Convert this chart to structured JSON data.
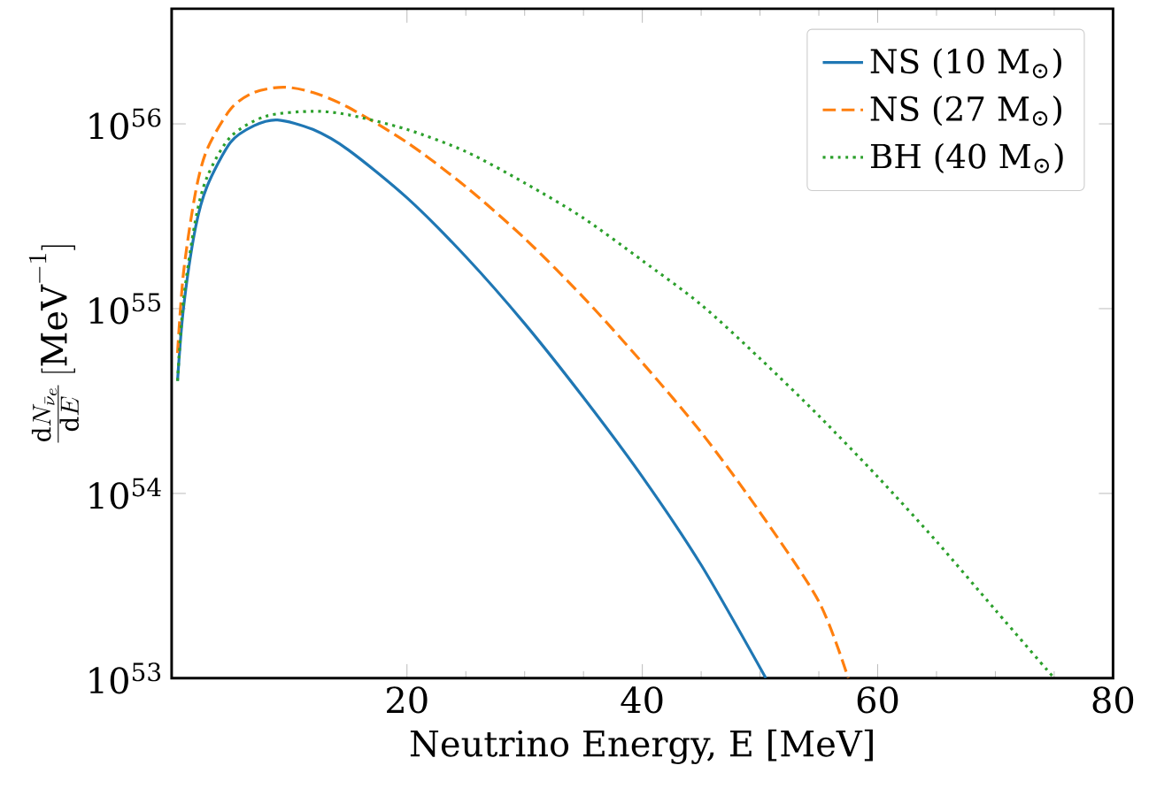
{
  "chart_data": {
    "type": "line",
    "xlabel": "Neutrino Energy, E [MeV]",
    "ylabel": "\\frac{\\mathrm{d}N_{\\bar{\\nu}_e}}{\\mathrm{d}E}\\,[\\mathrm{MeV}^{-1}]",
    "log": "y",
    "xlim": [
      0,
      80
    ],
    "ylim": [
      1e+53,
      4.2e+56
    ],
    "xticks": [
      20,
      40,
      60,
      80
    ],
    "yticks": [
      {
        "value": 1e+53,
        "label": "10$^{53}$"
      },
      {
        "value": 1e+54,
        "label": "10$^{54}$"
      },
      {
        "value": 1e+55,
        "label": "10$^{55}$"
      },
      {
        "value": 1e+56,
        "label": "10$^{56}$"
      }
    ],
    "legend": "top right",
    "series": [
      {
        "name": "NS (10 M$_{⊙}$)",
        "color": "#1f77b4",
        "line_style": "solid",
        "x": [
          0.5,
          1,
          2,
          3,
          5,
          7,
          9,
          12,
          15,
          20,
          25,
          30,
          35,
          40,
          45,
          50.5
        ],
        "values": [
          4.07e+54,
          1e+55,
          2.69e+55,
          4.57e+55,
          7.94e+55,
          9.77e+55,
          1.05e+56,
          9.33e+55,
          7.24e+55,
          3.98e+55,
          1.91e+55,
          8.3e+54,
          3.3e+54,
          1.23e+54,
          4.1e+53,
          1e+53
        ]
      },
      {
        "name": "NS (27 M$_{⊙}$)",
        "color": "#ff7f0e",
        "line_style": "dashed",
        "x": [
          0.5,
          1,
          2,
          3,
          5,
          7,
          9.5,
          12,
          15,
          20,
          25,
          30,
          35,
          40,
          45,
          50,
          55,
          57.5
        ],
        "values": [
          5.75e+54,
          1.55e+55,
          4.17e+55,
          7.24e+55,
          1.2e+56,
          1.48e+56,
          1.58e+56,
          1.48e+56,
          1.23e+56,
          7.94e+55,
          4.57e+55,
          2.4e+55,
          1.15e+55,
          5.1e+54,
          2.14e+54,
          7.9e+53,
          2.6e+53,
          1e+53
        ]
      },
      {
        "name": "BH (40 M$_{⊙}$)",
        "color": "#2ca02c",
        "line_style": "dotted",
        "x": [
          0.5,
          1,
          2,
          3,
          5,
          8,
          12,
          15,
          20,
          25,
          30,
          35,
          40,
          45,
          50,
          55,
          60,
          65,
          70,
          75
        ],
        "values": [
          4.07e+54,
          1.1e+55,
          2.95e+55,
          5.13e+55,
          8.5e+55,
          1.1e+56,
          1.17e+56,
          1.12e+56,
          9.33e+55,
          7.08e+55,
          4.79e+55,
          3.09e+55,
          1.82e+55,
          1.05e+55,
          5.37e+54,
          2.63e+54,
          1.23e+54,
          5.5e+53,
          2.34e+53,
          1e+53
        ]
      }
    ]
  }
}
